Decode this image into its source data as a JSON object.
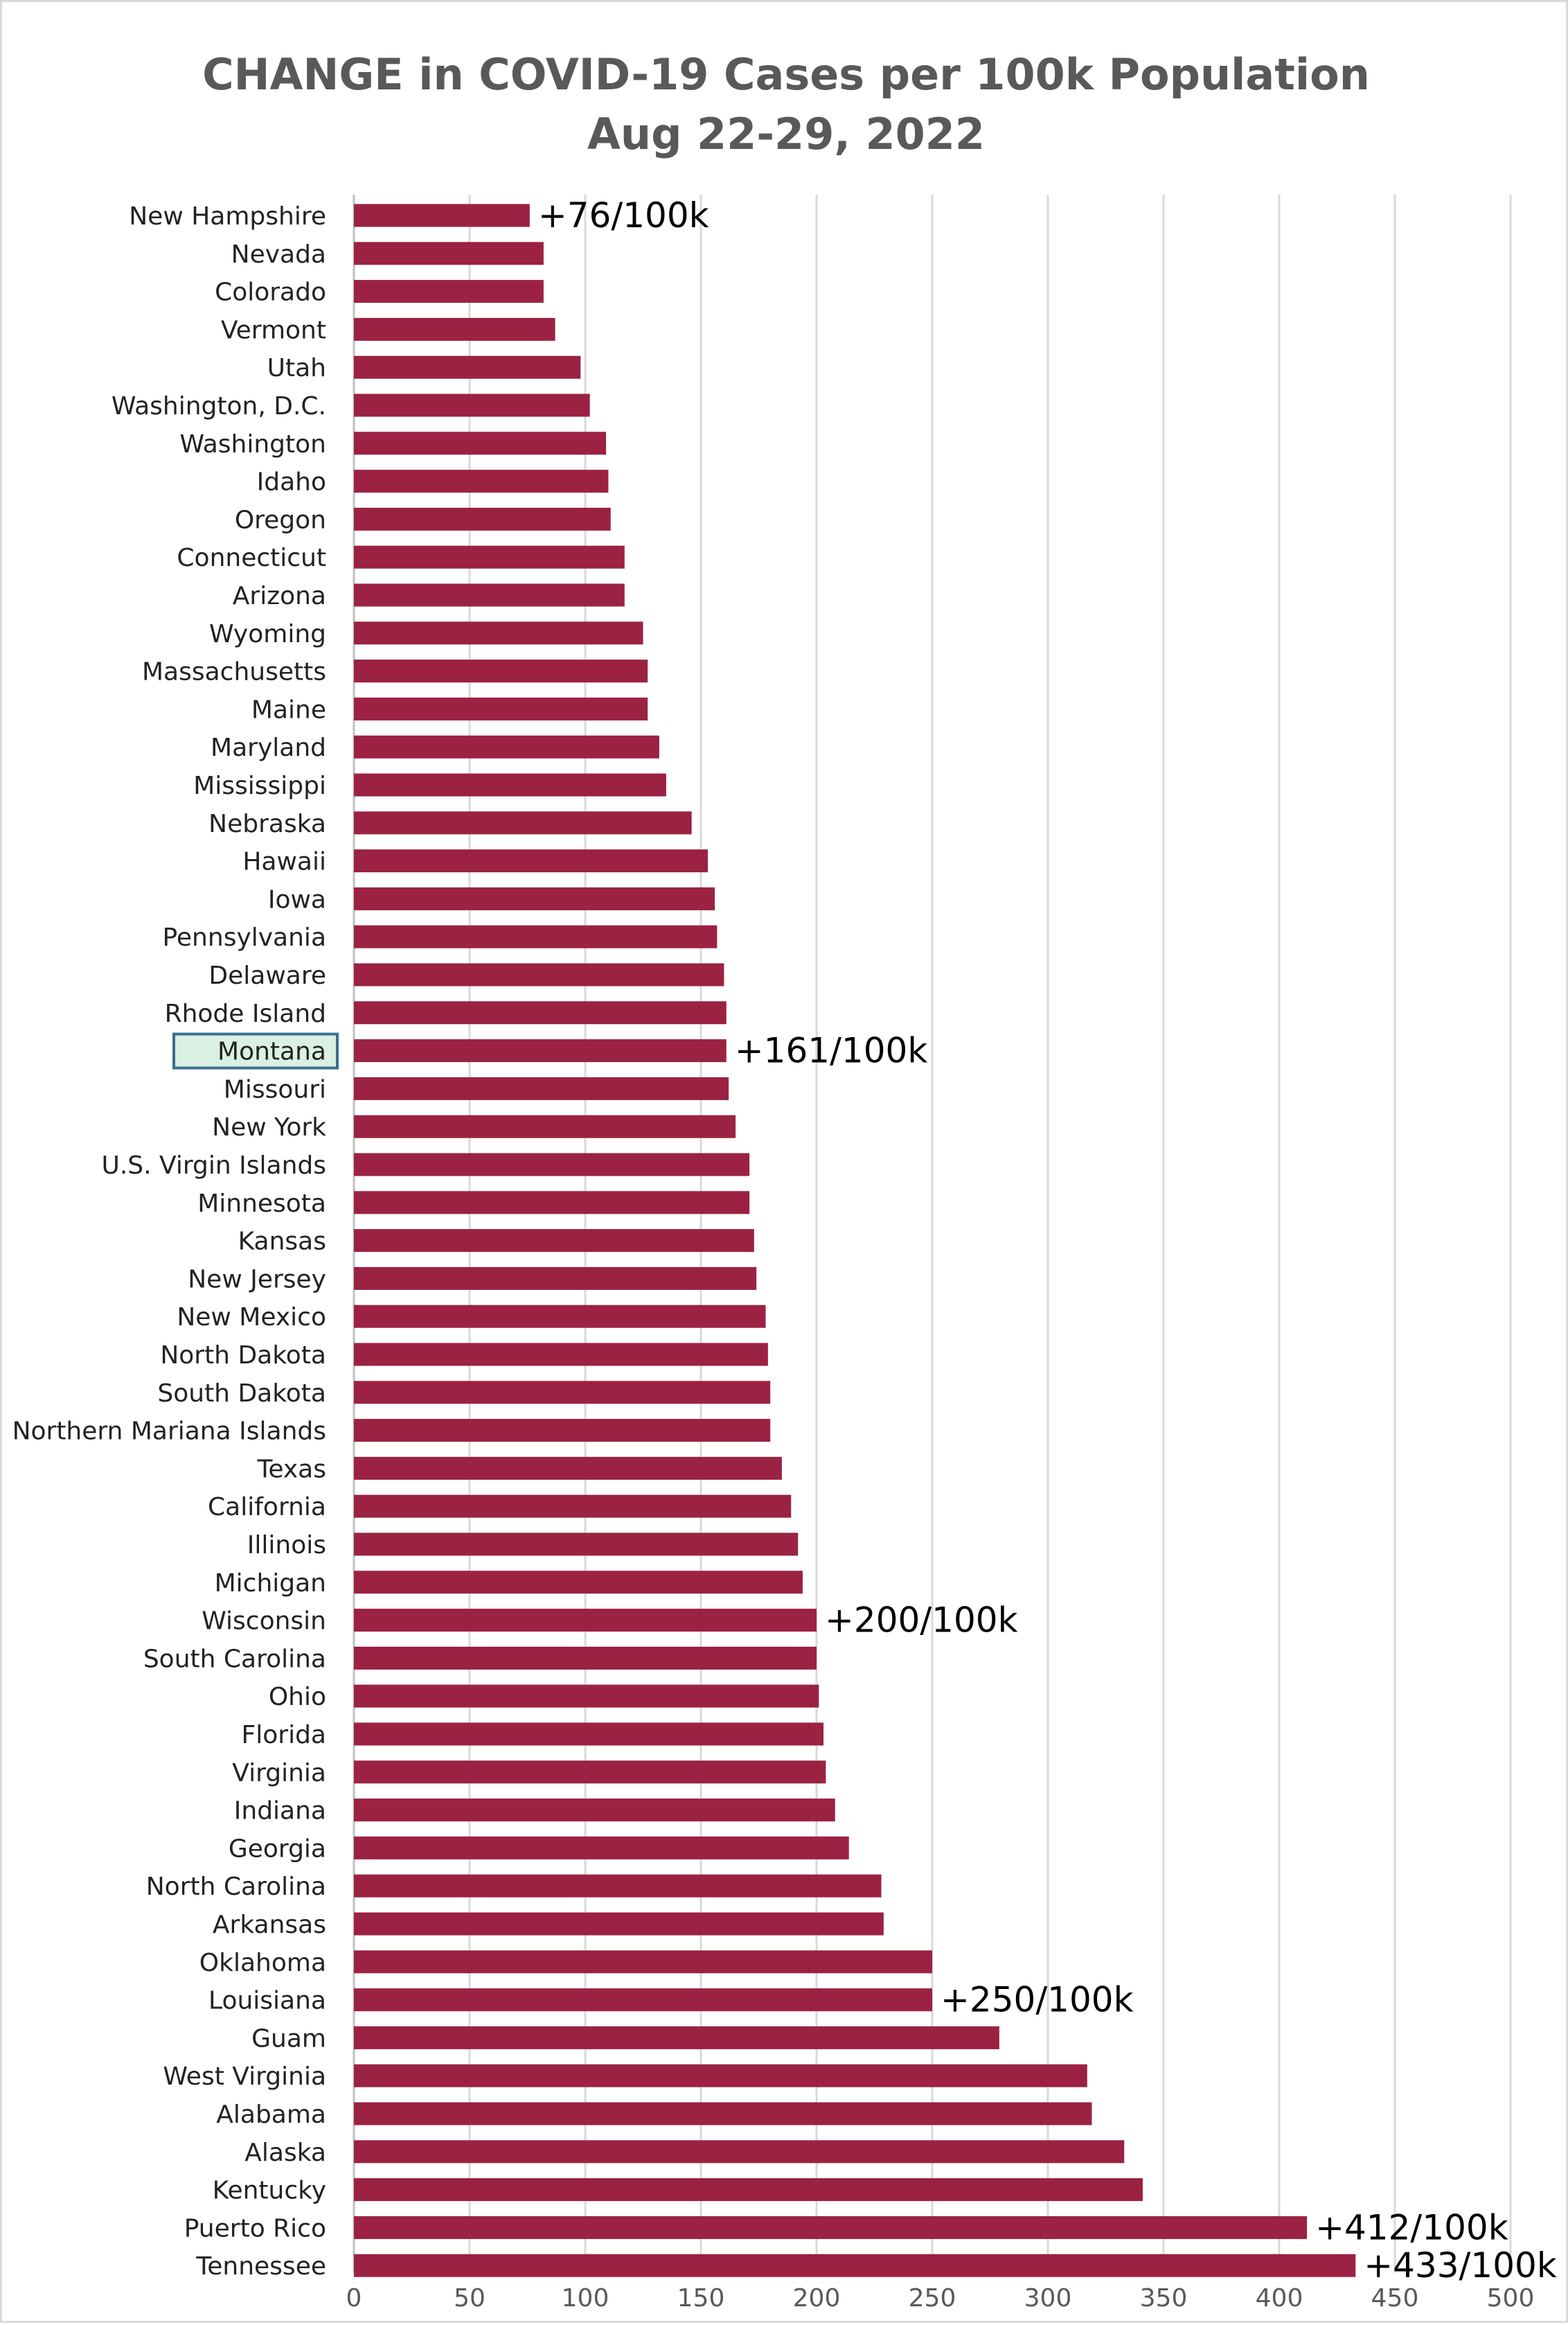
{
  "chart_data": {
    "type": "bar",
    "orientation": "horizontal",
    "title": "CHANGE in COVID-19 Cases per 100k Population",
    "subtitle": "Aug 22-29, 2022",
    "xlabel": "",
    "ylabel": "",
    "xlim": [
      0,
      500
    ],
    "x_ticks": [
      0,
      50,
      100,
      150,
      200,
      250,
      300,
      350,
      400,
      450,
      500
    ],
    "grid": true,
    "bar_color": "#9b2242",
    "highlight_category": "Montana",
    "highlight_color": "#d9f0e3",
    "highlight_border": "#3b6f8f",
    "categories": [
      "New Hampshire",
      "Nevada",
      "Colorado",
      "Vermont",
      "Utah",
      "Washington, D.C.",
      "Washington",
      "Idaho",
      "Oregon",
      "Connecticut",
      "Arizona",
      "Wyoming",
      "Massachusetts",
      "Maine",
      "Maryland",
      "Mississippi",
      "Nebraska",
      "Hawaii",
      "Iowa",
      "Pennsylvania",
      "Delaware",
      "Rhode Island",
      "Montana",
      "Missouri",
      "New York",
      "U.S. Virgin Islands",
      "Minnesota",
      "Kansas",
      "New Jersey",
      "New Mexico",
      "North Dakota",
      "South Dakota",
      "Northern Mariana Islands",
      "Texas",
      "California",
      "Illinois",
      "Michigan",
      "Wisconsin",
      "South Carolina",
      "Ohio",
      "Florida",
      "Virginia",
      "Indiana",
      "Georgia",
      "North Carolina",
      "Arkansas",
      "Oklahoma",
      "Louisiana",
      "Guam",
      "West Virginia",
      "Alabama",
      "Alaska",
      "Kentucky",
      "Puerto Rico",
      "Tennessee"
    ],
    "values": [
      76,
      82,
      82,
      87,
      98,
      102,
      109,
      110,
      111,
      117,
      117,
      125,
      127,
      127,
      132,
      135,
      146,
      153,
      156,
      157,
      160,
      161,
      161,
      162,
      165,
      171,
      171,
      173,
      174,
      178,
      179,
      180,
      180,
      185,
      189,
      192,
      194,
      200,
      200,
      201,
      203,
      204,
      208,
      214,
      228,
      229,
      250,
      250,
      279,
      317,
      319,
      333,
      341,
      412,
      433
    ],
    "annotations": [
      {
        "category": "New Hampshire",
        "text": "+76/100k"
      },
      {
        "category": "Montana",
        "text": "+161/100k"
      },
      {
        "category": "Wisconsin",
        "text": "+200/100k"
      },
      {
        "category": "Louisiana",
        "text": "+250/100k"
      },
      {
        "category": "Puerto Rico",
        "text": "+412/100k"
      },
      {
        "category": "Tennessee",
        "text": "+433/100k"
      }
    ]
  }
}
